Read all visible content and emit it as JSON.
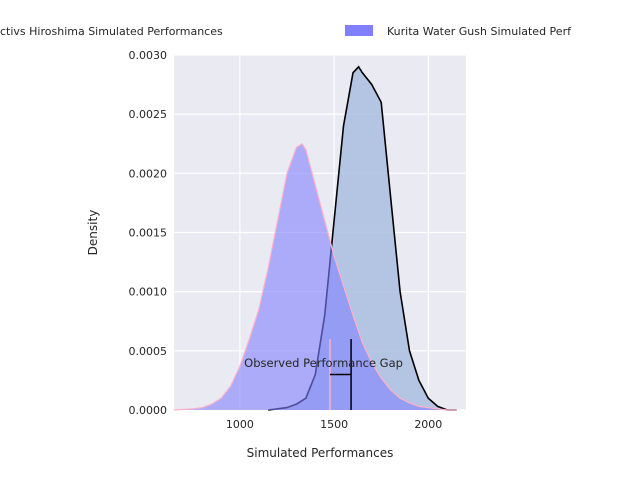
{
  "chart_data": {
    "type": "area",
    "title": "",
    "xlabel": "Simulated Performances",
    "ylabel": "Density",
    "xlim": [
      650,
      2200
    ],
    "ylim": [
      0,
      0.003
    ],
    "x_ticks": [
      1000,
      1500,
      2000
    ],
    "x_tick_labels": [
      "1000",
      "1500",
      "2000"
    ],
    "y_ticks": [
      0,
      0.0005,
      0.001,
      0.0015,
      0.002,
      0.0025,
      0.003
    ],
    "y_tick_labels": [
      "0.0000",
      "0.0005",
      "0.0010",
      "0.0015",
      "0.0020",
      "0.0025",
      "0.0030"
    ],
    "grid": true,
    "legend_position": "top (outside, clipped)",
    "colors": {
      "background": "#eaeaf2",
      "grid": "#ffffff",
      "series1_fill": "#8080ff",
      "series1_edge": "#ffb0c8",
      "series2_fill": "#a9bee1",
      "series2_edge": "#000000",
      "marker": "#000000",
      "marker2": "#ffb0c8"
    },
    "series": [
      {
        "name": "Kurita Water Gush Simulated Performances",
        "legend_label": "Kurita Water Gush Simulated Perf",
        "x": [
          650,
          750,
          800,
          850,
          900,
          950,
          1000,
          1050,
          1100,
          1150,
          1200,
          1250,
          1300,
          1330,
          1350,
          1400,
          1450,
          1500,
          1550,
          1600,
          1650,
          1700,
          1750,
          1800,
          1850,
          1900,
          1950,
          2000,
          2050,
          2100,
          2150
        ],
        "y": [
          0.0,
          1e-05,
          2e-05,
          5e-05,
          0.0001,
          0.0002,
          0.00037,
          0.0006,
          0.00085,
          0.0012,
          0.0016,
          0.002,
          0.00222,
          0.00225,
          0.0022,
          0.0019,
          0.0016,
          0.0013,
          0.00105,
          0.0008,
          0.00057,
          0.0004,
          0.00027,
          0.00017,
          0.0001,
          6e-05,
          3e-05,
          2e-05,
          1e-05,
          0.0,
          0.0
        ]
      },
      {
        "name": "Activs Hiroshima Simulated Performances",
        "legend_label": "ctivs Hiroshima Simulated Performances",
        "x": [
          1150,
          1200,
          1250,
          1300,
          1350,
          1400,
          1450,
          1500,
          1550,
          1600,
          1630,
          1650,
          1700,
          1750,
          1800,
          1850,
          1900,
          1950,
          2000,
          2050,
          2100,
          2150
        ],
        "y": [
          0.0,
          1e-05,
          2e-05,
          5e-05,
          0.0001,
          0.0003,
          0.0008,
          0.0016,
          0.0024,
          0.00285,
          0.0029,
          0.00285,
          0.00275,
          0.0026,
          0.0018,
          0.001,
          0.0005,
          0.00025,
          0.0001,
          3e-05,
          0.0,
          0.0
        ]
      }
    ],
    "annotations": [
      {
        "text": "Observed Performance Gap",
        "x": 1550,
        "y": 0.00033
      }
    ],
    "markers": {
      "vline_black": {
        "x": 1590,
        "y_top": 0.0006
      },
      "vline_pink": {
        "x": 1478,
        "y_top": 0.0006
      },
      "hbar": {
        "x_start": 1478,
        "x_end": 1590,
        "y": 0.0003
      }
    }
  }
}
